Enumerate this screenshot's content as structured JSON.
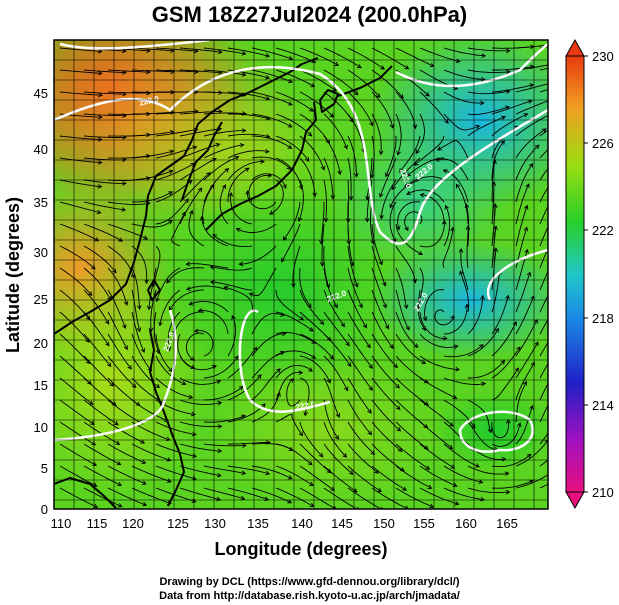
{
  "title": "GSM 18Z27Jul2024 (200.0hPa)",
  "axes": {
    "xlabel": "Longitude (degrees)",
    "ylabel": "Latitude  (degrees)",
    "x_ticks": [
      "110",
      "115",
      "120",
      "125",
      "130",
      "135",
      "140",
      "145",
      "150",
      "155",
      "160",
      "165"
    ],
    "y_ticks": [
      "0",
      "5",
      "10",
      "15",
      "20",
      "25",
      "30",
      "35",
      "40",
      "45"
    ],
    "lon_range": [
      110,
      170
    ],
    "lat_range": [
      0,
      50
    ]
  },
  "colorbar": {
    "labels": [
      "230",
      "226",
      "222",
      "218",
      "214",
      "210"
    ],
    "range": [
      210,
      230
    ],
    "colors": [
      "#e8107e",
      "#a010c0",
      "#2020c8",
      "#1a8ae6",
      "#20c8c8",
      "#28d028",
      "#9add10",
      "#f0a020",
      "#e83a10"
    ]
  },
  "contour_labels": [
    "222.0",
    "222.0",
    "222.0",
    "222.0",
    "222.0",
    "222.0",
    "222.0"
  ],
  "credits": {
    "line1": "Drawing by DCL (https://www.gfd-dennou.org/library/dcl/)",
    "line2": "Data from http://database.rish.kyoto-u.ac.jp/arch/jmadata/"
  }
}
